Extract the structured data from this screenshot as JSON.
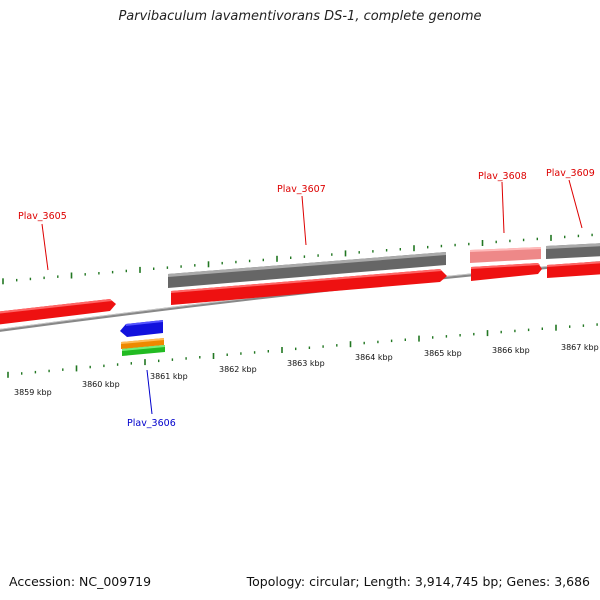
{
  "title": "Parvibaculum lavamentivorans DS-1, complete genome",
  "footer": {
    "accession": "Accession: NC_009719",
    "summary": "Topology: circular; Length: 3,914,745 bp; Genes: 3,686"
  },
  "colors": {
    "gene_forward": "#ee1111",
    "gene_forward_light": "#ee8888",
    "gene_grey": "#666666",
    "gene_blue": "#1111dd",
    "gene_orange": "#ee8800",
    "gene_green": "#22bb22",
    "tick": "#227722",
    "backbone": "#888888",
    "label_red": "#dd0000",
    "label_blue": "#0000cc"
  },
  "ruler_labels": [
    "3859 kbp",
    "3860 kbp",
    "3861 kbp",
    "3862 kbp",
    "3863 kbp",
    "3864 kbp",
    "3865 kbp",
    "3866 kbp",
    "3867 kbp"
  ],
  "gene_labels": [
    {
      "name": "Plav_3605",
      "color": "red"
    },
    {
      "name": "Plav_3606",
      "color": "blue"
    },
    {
      "name": "Plav_3607",
      "color": "red"
    },
    {
      "name": "Plav_3608",
      "color": "red"
    },
    {
      "name": "Plav_3609",
      "color": "red"
    }
  ]
}
